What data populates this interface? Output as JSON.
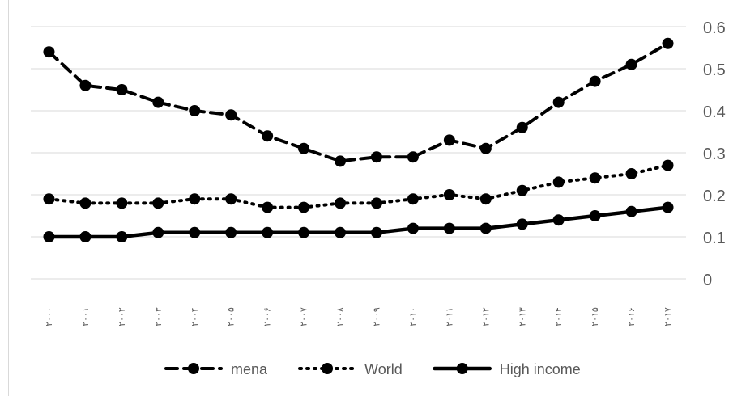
{
  "chart_data": {
    "type": "line",
    "categories": [
      "۲۰۰۰",
      "۲۰۰۱",
      "۲۰۰۲",
      "۲۰۰۳",
      "۲۰۰۴",
      "۲۰۰۵",
      "۲۰۰۶",
      "۲۰۰۷",
      "۲۰۰۸",
      "۲۰۰۹",
      "۲۰۱۰",
      "۲۰۱۱",
      "۲۰۱۲",
      "۲۰۱۳",
      "۲۰۱۴",
      "۲۰۱۵",
      "۲۰۱۶",
      "۲۰۱۷"
    ],
    "series": [
      {
        "name": "mena",
        "style": "dashed",
        "color": "#000000",
        "values": [
          0.54,
          0.46,
          0.45,
          0.42,
          0.4,
          0.39,
          0.34,
          0.31,
          0.28,
          0.29,
          0.29,
          0.33,
          0.31,
          0.36,
          0.42,
          0.47,
          0.51,
          0.56
        ]
      },
      {
        "name": "World",
        "style": "dotted",
        "color": "#000000",
        "values": [
          0.19,
          0.18,
          0.18,
          0.18,
          0.19,
          0.19,
          0.17,
          0.17,
          0.18,
          0.18,
          0.19,
          0.2,
          0.19,
          0.21,
          0.23,
          0.24,
          0.25,
          0.27
        ]
      },
      {
        "name": "High income",
        "style": "solid",
        "color": "#000000",
        "values": [
          0.1,
          0.1,
          0.1,
          0.11,
          0.11,
          0.11,
          0.11,
          0.11,
          0.11,
          0.11,
          0.12,
          0.12,
          0.12,
          0.13,
          0.14,
          0.15,
          0.16,
          0.17
        ]
      }
    ],
    "yticks": [
      "0",
      "0.1",
      "0.2",
      "0.3",
      "0.4",
      "0.5",
      "0.6"
    ],
    "ylim": [
      0,
      0.6
    ],
    "y_axis_side": "right",
    "grid": true,
    "legend_position": "bottom"
  }
}
